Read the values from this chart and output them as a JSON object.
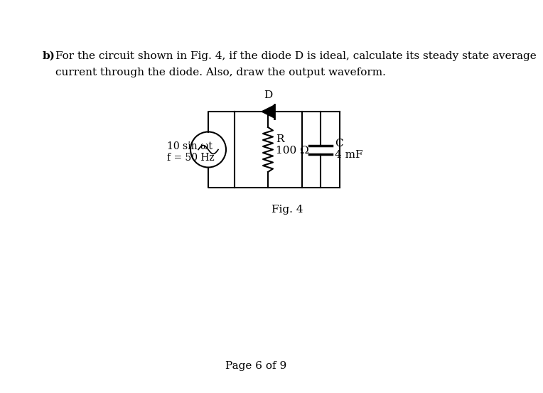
{
  "background_color": "#ffffff",
  "title_bold": "b)",
  "title_text": "For the circuit shown in Fig. 4, if the diode D is ideal, calculate its steady state average",
  "title_text2": "current through the diode. Also, draw the output waveform.",
  "fig_label": "Fig. 4",
  "page_label": "Page 6 of 9",
  "source_label": "10 sin ωt",
  "freq_label": "f = 50 Hz",
  "resistor_label": "R",
  "resistor_value": "100 Ω",
  "capacitor_label": "C",
  "capacitor_value": "4 mF",
  "diode_label": "D",
  "circuit_color": "#000000",
  "text_color": "#000000",
  "font_size": 11,
  "fig_label_fontsize": 11,
  "page_fontsize": 11
}
